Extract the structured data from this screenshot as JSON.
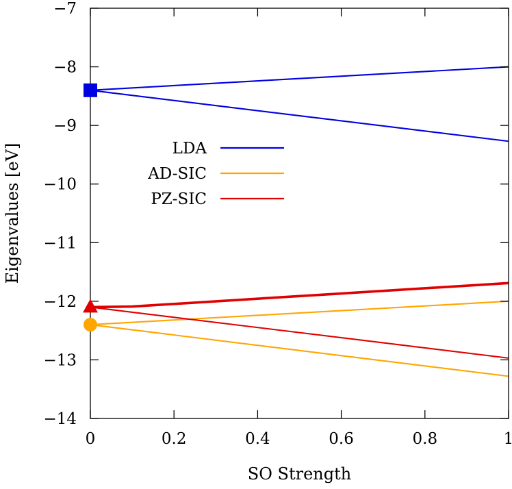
{
  "chart_data": {
    "type": "line",
    "xlabel": "SO Strength",
    "ylabel": "Eigenvalues [eV]",
    "xlim": [
      0,
      1
    ],
    "ylim": [
      -14,
      -7
    ],
    "xticks": [
      0,
      0.2,
      0.4,
      0.6,
      0.8,
      1
    ],
    "xtick_labels": [
      "0",
      "0.2",
      "0.4",
      "0.6",
      "0.8",
      "1"
    ],
    "yticks": [
      -14,
      -13,
      -12,
      -11,
      -10,
      -9,
      -8,
      -7
    ],
    "ytick_labels": [
      "−14",
      "−13",
      "−12",
      "−11",
      "−10",
      "−9",
      "−8",
      "−7"
    ],
    "grid": false,
    "legend_position": "middle-left",
    "series": [
      {
        "name": "LDA",
        "color": "#0000e0",
        "marker": "square",
        "marker_point": [
          0,
          -8.4
        ],
        "lines": [
          {
            "x": [
              0,
              1
            ],
            "y": [
              -8.4,
              -8.0
            ],
            "bold": false
          },
          {
            "x": [
              0,
              1
            ],
            "y": [
              -8.4,
              -9.27
            ],
            "bold": false
          }
        ]
      },
      {
        "name": "AD-SIC",
        "color": "#ffa500",
        "marker": "circle",
        "marker_point": [
          0,
          -12.4
        ],
        "lines": [
          {
            "x": [
              0,
              1
            ],
            "y": [
              -12.4,
              -12.0
            ],
            "bold": false
          },
          {
            "x": [
              0,
              1
            ],
            "y": [
              -12.4,
              -13.28
            ],
            "bold": false
          }
        ]
      },
      {
        "name": "PZ-SIC",
        "color": "#e00000",
        "marker": "triangle",
        "marker_point": [
          0,
          -12.1
        ],
        "lines": [
          {
            "x": [
              0,
              0.1,
              1
            ],
            "y": [
              -12.1,
              -12.09,
              -11.69
            ],
            "bold": true
          },
          {
            "x": [
              0,
              1
            ],
            "y": [
              -12.1,
              -12.97
            ],
            "bold": false
          }
        ]
      }
    ]
  }
}
